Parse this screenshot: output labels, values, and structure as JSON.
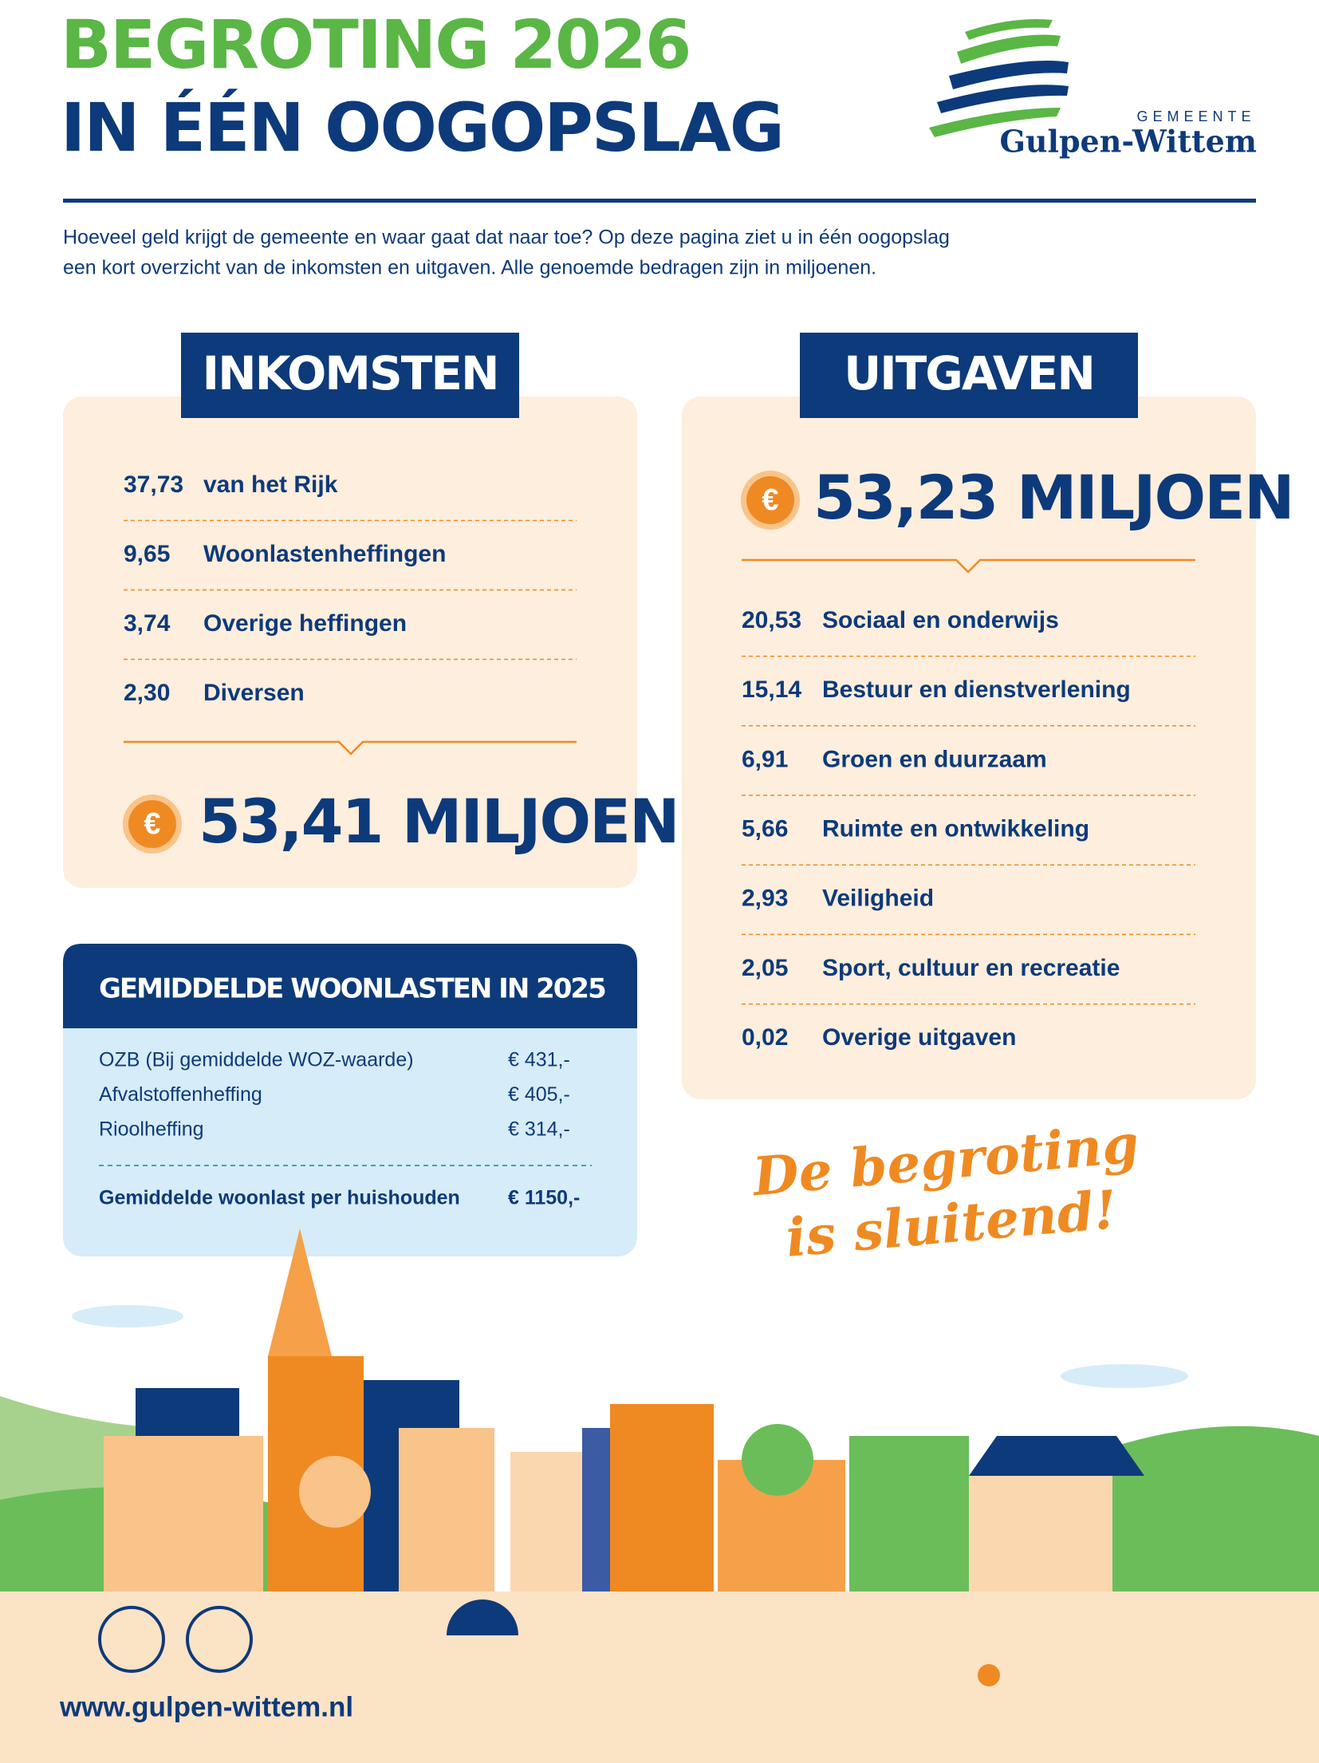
{
  "header": {
    "title_line1": "BEGROTING 2026",
    "title_line2": "IN ÉÉN OOGOPSLAG",
    "logo": {
      "top": "GEMEENTE",
      "name": "Gulpen-Wittem"
    }
  },
  "intro": [
    "Hoeveel geld krijgt de gemeente en waar gaat dat naar toe? Op deze pagina ziet u in één oogopslag",
    "een kort overzicht van de inkomsten en uitgaven. Alle genoemde bedragen zijn in miljoenen."
  ],
  "income": {
    "title": "INKOMSTEN",
    "items": [
      {
        "amount": "37,73",
        "label": "van het Rijk"
      },
      {
        "amount": "9,65",
        "label": "Woonlastenheffingen"
      },
      {
        "amount": "3,74",
        "label": "Overige heffingen"
      },
      {
        "amount": "2,30",
        "label": "Diversen"
      }
    ],
    "total": "53,41 MILJOEN"
  },
  "expenses": {
    "title": "UITGAVEN",
    "total": "53,23 MILJOEN",
    "items": [
      {
        "amount": "20,53",
        "label": "Sociaal en onderwijs"
      },
      {
        "amount": "15,14",
        "label": "Bestuur en dienstverlening"
      },
      {
        "amount": "6,91",
        "label": "Groen en duurzaam"
      },
      {
        "amount": "5,66",
        "label": "Ruimte en ontwikkeling"
      },
      {
        "amount": "2,93",
        "label": "Veiligheid"
      },
      {
        "amount": "2,05",
        "label": "Sport, cultuur en recreatie"
      },
      {
        "amount": "0,02",
        "label": "Overige uitgaven"
      }
    ]
  },
  "housing_costs": {
    "title": "GEMIDDELDE WOONLASTEN IN 2025",
    "items": [
      {
        "label": "OZB (Bij gemiddelde WOZ-waarde)",
        "value": "€ 431,-"
      },
      {
        "label": "Afvalstoffenheffing",
        "value": "€ 405,-"
      },
      {
        "label": "Rioolheffing",
        "value": "€ 314,-"
      }
    ],
    "total": {
      "label": "Gemiddelde woonlast per huishouden",
      "value": "€ 1150,-"
    }
  },
  "slogan": [
    "De begroting",
    "is sluitend!"
  ],
  "website": "www.gulpen-wittem.nl"
}
